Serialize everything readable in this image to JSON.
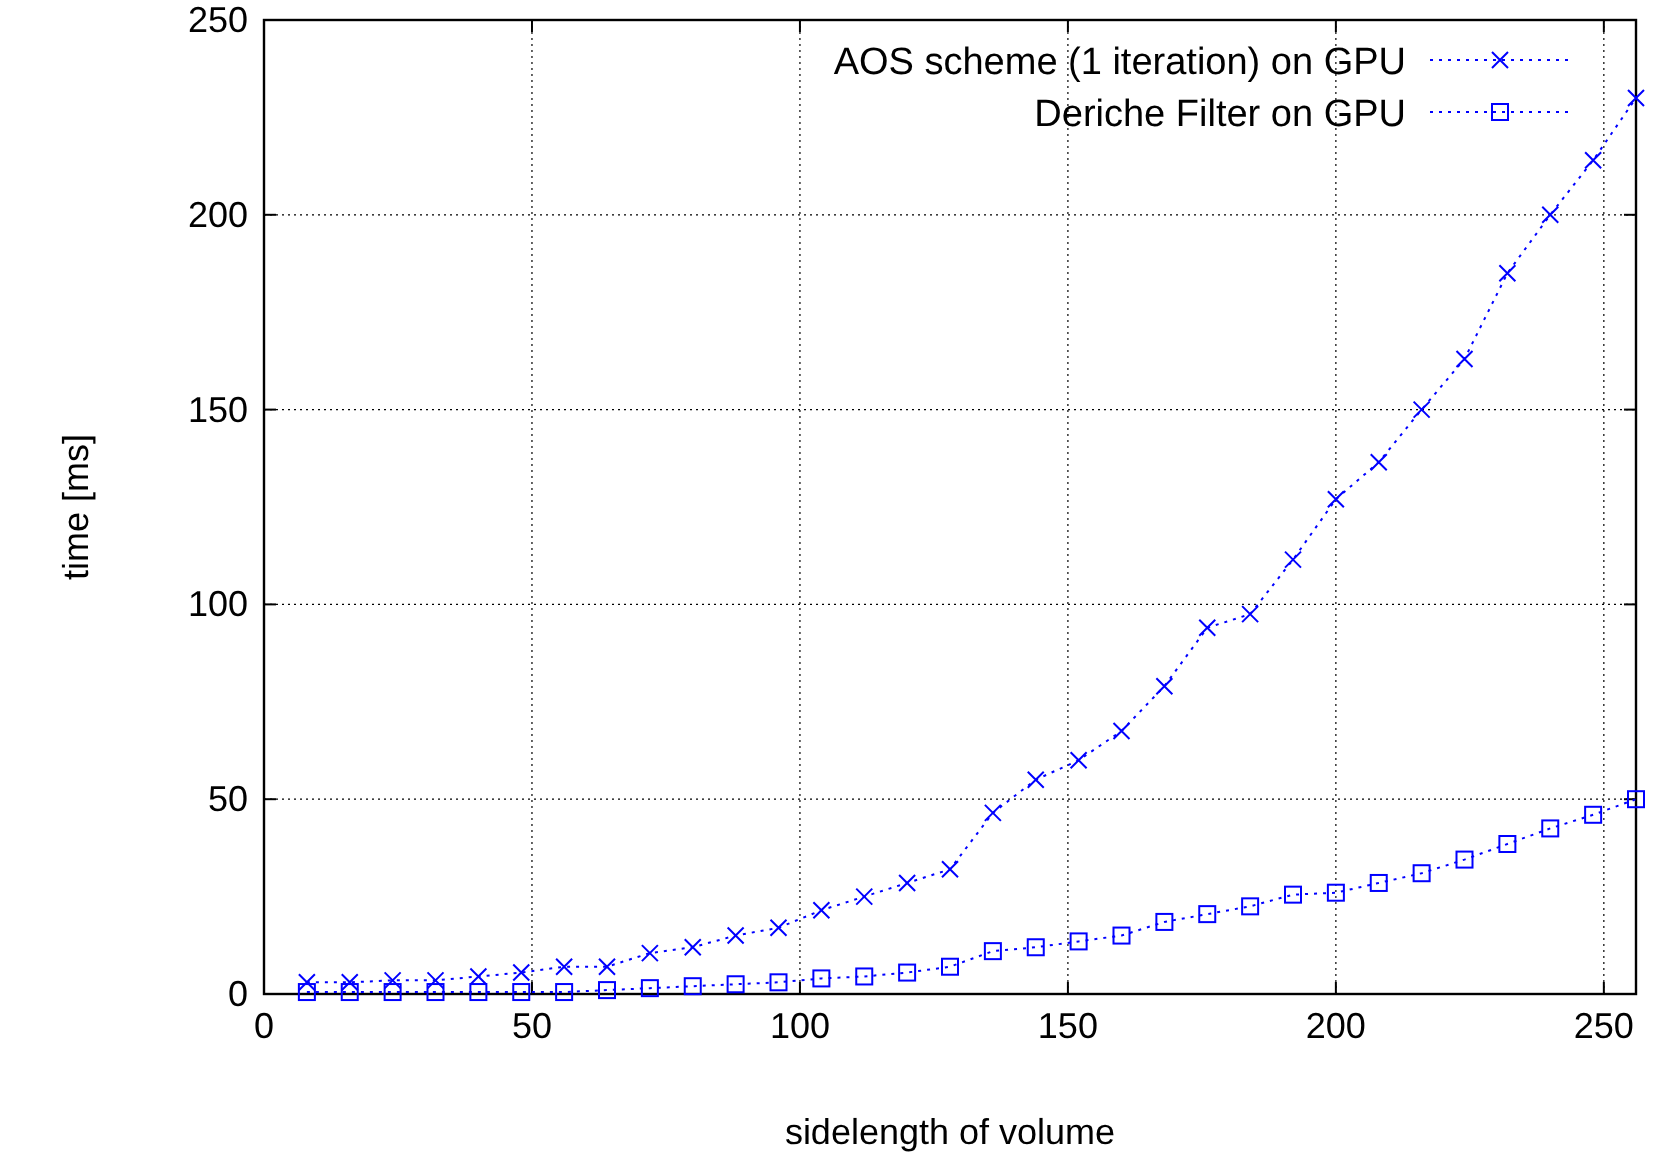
{
  "chart_data": {
    "type": "line",
    "xlabel": "sidelength of volume",
    "ylabel": "time [ms]",
    "x": [
      8,
      16,
      24,
      32,
      40,
      48,
      56,
      64,
      72,
      80,
      88,
      96,
      104,
      112,
      120,
      128,
      136,
      144,
      152,
      160,
      168,
      176,
      184,
      192,
      200,
      208,
      216,
      224,
      232,
      240,
      248,
      256
    ],
    "series": [
      {
        "name": "AOS scheme (1 iteration) on GPU",
        "color": "#0000ff",
        "marker": "cross",
        "values": [
          3,
          3,
          3.5,
          3.5,
          4.5,
          5.5,
          7,
          7,
          10.5,
          12,
          15,
          17,
          21.5,
          25,
          28.5,
          32,
          46.5,
          55,
          60,
          67.5,
          79,
          94,
          97.5,
          111.5,
          127,
          136.5,
          150,
          163,
          185,
          200,
          214,
          230
        ]
      },
      {
        "name": "Deriche Filter on GPU",
        "color": "#0000ff",
        "marker": "square",
        "values": [
          0.5,
          0.5,
          0.5,
          0.5,
          0.5,
          0.5,
          0.5,
          1,
          1.5,
          2,
          2.5,
          3,
          4,
          4.5,
          5.5,
          7,
          11,
          12,
          13.5,
          15,
          18.5,
          20.5,
          22.5,
          25.5,
          26,
          28.5,
          31,
          34.5,
          38.5,
          42.5,
          46,
          50
        ]
      }
    ],
    "xlim": [
      0,
      256
    ],
    "xticks": [
      0,
      50,
      100,
      150,
      200,
      250
    ],
    "ylim": [
      0,
      250
    ],
    "yticks": [
      0,
      50,
      100,
      150,
      200,
      250
    ],
    "grid": true,
    "legend": "top right",
    "line_style": "dotted"
  }
}
